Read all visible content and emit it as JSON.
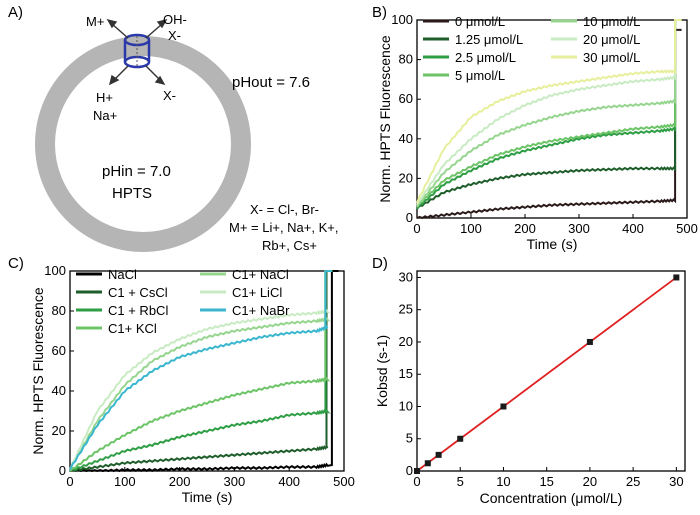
{
  "panel_letters": [
    "A)",
    "B)",
    "C)",
    "D)"
  ],
  "schematic": {
    "m_plus": "M+",
    "oh_minus": "OH-",
    "x_minus_top": "X-",
    "h_plus": "H+",
    "na_plus": "Na+",
    "x_minus_right": "X-",
    "ph_out": "pHout = 7.6",
    "ph_in": "pHin = 7.0",
    "hpts": "HPTS",
    "x_eq": "X- = Cl-, Br-",
    "m_eq_line1": "M+ = Li+, Na+, K+,",
    "m_eq_line2": "Rb+, Cs+"
  },
  "chart_data": [
    {
      "panel": "B",
      "type": "line",
      "title": "",
      "xlabel": "Time (s)",
      "ylabel": "Norm. HPTS Fluorescence",
      "xlim": [
        0,
        500
      ],
      "ylim": [
        0,
        100
      ],
      "xticks": [
        0,
        100,
        200,
        300,
        400,
        500
      ],
      "yticks": [
        0,
        20,
        40,
        60,
        80,
        100
      ],
      "legend_location": "top",
      "x": [
        0,
        50,
        100,
        150,
        200,
        250,
        300,
        350,
        400,
        450,
        478
      ],
      "series": [
        {
          "name": "0 μmol/L",
          "color": "#2a1a1a",
          "values": [
            0,
            1.5,
            3,
            4.5,
            5.5,
            6.5,
            7,
            7.5,
            8,
            8.5,
            9
          ],
          "spike_to": 95
        },
        {
          "name": "1.25 μmol/L",
          "color": "#1e5e2a",
          "values": [
            5,
            13,
            17,
            20,
            22,
            23,
            24,
            24.5,
            25,
            25,
            25
          ],
          "spike_to": 100
        },
        {
          "name": "2.5 μmol/L",
          "color": "#2e9e44",
          "values": [
            5,
            17,
            24,
            30,
            34,
            37,
            40,
            42,
            43,
            44,
            45
          ],
          "spike_to": 100
        },
        {
          "name": "5 μmol/L",
          "color": "#6cc467",
          "values": [
            6,
            19,
            26,
            32,
            36,
            39,
            41,
            43,
            45,
            46,
            47
          ],
          "spike_to": 100
        },
        {
          "name": "10 μmol/L",
          "color": "#96d58e",
          "values": [
            6,
            23,
            34,
            42,
            47,
            51,
            54,
            56,
            57,
            58,
            59
          ],
          "spike_to": 100
        },
        {
          "name": "20 μmol/L",
          "color": "#c9ebc3",
          "values": [
            7,
            27,
            40,
            50,
            57,
            62,
            65,
            67,
            69,
            70,
            71
          ],
          "spike_to": 100
        },
        {
          "name": "30 μmol/L",
          "color": "#e7ef9c",
          "values": [
            8,
            35,
            51,
            59,
            64,
            67,
            69,
            71,
            73,
            74,
            74
          ],
          "spike_to": 100
        }
      ]
    },
    {
      "panel": "C",
      "type": "line",
      "title": "",
      "xlabel": "Time (s)",
      "ylabel": "Norm. HPTS Fluorescence",
      "xlim": [
        0,
        500
      ],
      "ylim": [
        0,
        100
      ],
      "xticks": [
        0,
        100,
        200,
        300,
        400,
        500
      ],
      "yticks": [
        0,
        20,
        40,
        60,
        80,
        100
      ],
      "legend_location": "top",
      "x": [
        0,
        50,
        100,
        150,
        200,
        250,
        300,
        350,
        400,
        450,
        470
      ],
      "series": [
        {
          "name": "NaCl",
          "color": "#000000",
          "values": [
            0,
            0,
            0.5,
            0.5,
            1,
            1,
            1.5,
            1.5,
            2,
            2,
            3
          ],
          "spike_to": 100,
          "spike_x": 478
        },
        {
          "name": "C1 + CsCl",
          "color": "#1e5e2a",
          "values": [
            0,
            2,
            4,
            5,
            6,
            7,
            8,
            9,
            10,
            11,
            12
          ],
          "spike_to": 100,
          "spike_x": 468
        },
        {
          "name": "C1 + RbCl",
          "color": "#2e9e44",
          "values": [
            0,
            5,
            10,
            13,
            17,
            20,
            23,
            25,
            28,
            29,
            30
          ],
          "spike_to": 100,
          "spike_x": 466
        },
        {
          "name": "C1+ KCl",
          "color": "#6cc467",
          "values": [
            0,
            10,
            18,
            25,
            30,
            34,
            38,
            41,
            44,
            45,
            46
          ],
          "spike_to": 100,
          "spike_x": 466
        },
        {
          "name": "C1+ NaCl",
          "color": "#96d58e",
          "values": [
            1,
            25,
            43,
            55,
            62,
            67,
            70,
            72,
            74,
            75,
            76
          ],
          "spike_to": 100,
          "spike_x": 466
        },
        {
          "name": "C1+ LiCl",
          "color": "#c9ebc3",
          "values": [
            1,
            30,
            48,
            59,
            66,
            71,
            74,
            76,
            78,
            79,
            80
          ],
          "spike_to": 100,
          "spike_x": 466
        },
        {
          "name": "C1+ NaBr",
          "color": "#3ab7cf",
          "values": [
            1,
            23,
            40,
            50,
            57,
            61,
            64,
            67,
            69,
            70,
            72
          ],
          "spike_to": 100,
          "spike_x": 466
        }
      ]
    },
    {
      "panel": "D",
      "type": "scatter",
      "title": "",
      "xlabel": "Concentration (μmol/L)",
      "ylabel": "Kobsd (s-1)",
      "xlim": [
        0,
        31
      ],
      "ylim": [
        0,
        31
      ],
      "xticks": [
        0,
        5,
        10,
        15,
        20,
        25,
        30
      ],
      "yticks": [
        0,
        5,
        10,
        15,
        20,
        25,
        30
      ],
      "points": {
        "x": [
          0,
          1.25,
          2.5,
          5,
          10,
          20,
          30
        ],
        "y": [
          0,
          1.2,
          2.5,
          5,
          10,
          20,
          30
        ]
      },
      "fit": {
        "slope": 1.0,
        "intercept": 0,
        "color": "#e02020"
      }
    }
  ]
}
